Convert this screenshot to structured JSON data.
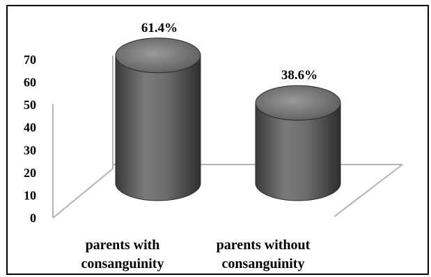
{
  "chart_data": {
    "type": "bar",
    "style": "3d-cylinder",
    "title": "",
    "xlabel": "",
    "ylabel": "",
    "categories": [
      [
        "parents with",
        "consanguinity"
      ],
      [
        "parents without",
        "consanguinity"
      ]
    ],
    "values": [
      61.4,
      38.6
    ],
    "data_labels": [
      "61.4%",
      "38.6%"
    ],
    "ylim": [
      0,
      70
    ],
    "yticks": [
      "0",
      "10",
      "20",
      "30",
      "40",
      "50",
      "60",
      "70"
    ],
    "grid": false,
    "legend": "none",
    "colors": {
      "bar_body": "#6a6a6a",
      "bar_top": "#8c8c8c",
      "floor_lines": "#b3b3b3"
    }
  }
}
